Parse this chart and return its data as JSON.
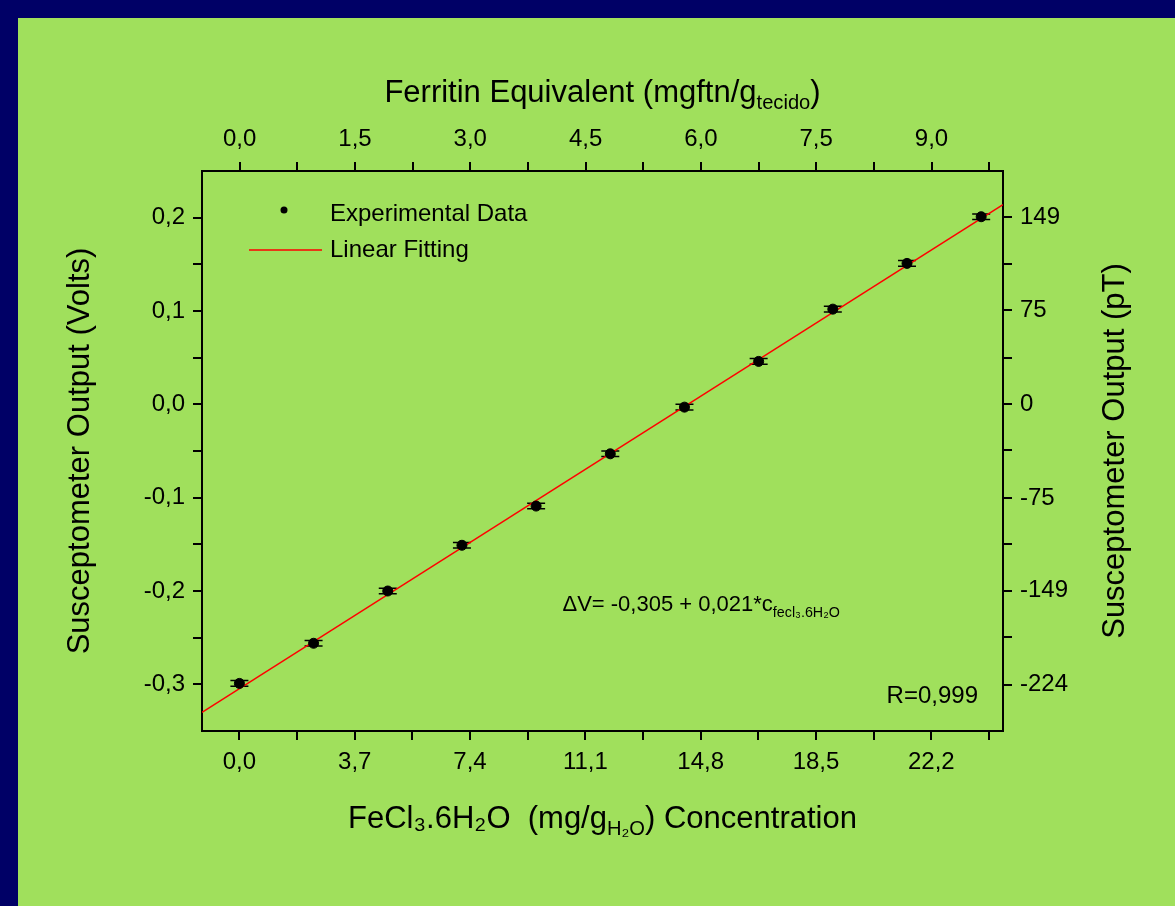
{
  "chart_data": {
    "type": "scatter",
    "xlabel": "FeCl₃.6H₂O  (mg/g$_{H₂O}$) Concentration",
    "ylabel": "Susceptometer Output (Volts)",
    "y2label": "Susceptometer Output (pT)",
    "x2label": "Ferritin Equivalent (mgftn/g$_{tecido}$)",
    "annotations": [
      "ΔV= -0,305 + 0,021*c$_{fecl₃.6H₂O}$",
      "R=0,999"
    ],
    "xlim": [
      -1.2,
      24.5
    ],
    "xticks": [
      {
        "value": 0,
        "label": "0,0"
      },
      {
        "value": 1.85,
        "label": null
      },
      {
        "value": 3.7,
        "label": "3,7"
      },
      {
        "value": 5.55,
        "label": null
      },
      {
        "value": 7.4,
        "label": "7,4"
      },
      {
        "value": 9.25,
        "label": null
      },
      {
        "value": 11.1,
        "label": "11,1"
      },
      {
        "value": 12.95,
        "label": null
      },
      {
        "value": 14.8,
        "label": "14,8"
      },
      {
        "value": 16.65,
        "label": null
      },
      {
        "value": 18.5,
        "label": "18,5"
      },
      {
        "value": 20.35,
        "label": null
      },
      {
        "value": 22.2,
        "label": "22,2"
      },
      {
        "value": 24.05,
        "label": null
      }
    ],
    "x2lim": [
      -0.49,
      9.93
    ],
    "x2ticks": [
      {
        "value": 0,
        "label": "0,0"
      },
      {
        "value": 0.75,
        "label": null
      },
      {
        "value": 1.5,
        "label": "1,5"
      },
      {
        "value": 2.25,
        "label": null
      },
      {
        "value": 3,
        "label": "3,0"
      },
      {
        "value": 3.75,
        "label": null
      },
      {
        "value": 4.5,
        "label": "4,5"
      },
      {
        "value": 5.25,
        "label": null
      },
      {
        "value": 6,
        "label": "6,0"
      },
      {
        "value": 6.75,
        "label": null
      },
      {
        "value": 7.5,
        "label": "7,5"
      },
      {
        "value": 8.25,
        "label": null
      },
      {
        "value": 9,
        "label": "9,0"
      },
      {
        "value": 9.75,
        "label": null
      }
    ],
    "ylim": [
      -0.35,
      0.25
    ],
    "yticks": [
      {
        "value": -0.3,
        "label": "-0,3"
      },
      {
        "value": -0.25,
        "label": null
      },
      {
        "value": -0.2,
        "label": "-0,2"
      },
      {
        "value": -0.15,
        "label": null
      },
      {
        "value": -0.1,
        "label": "-0,1"
      },
      {
        "value": -0.05,
        "label": null
      },
      {
        "value": 0,
        "label": "0,0"
      },
      {
        "value": 0.05,
        "label": null
      },
      {
        "value": 0.1,
        "label": "0,1"
      },
      {
        "value": 0.15,
        "label": null
      },
      {
        "value": 0.2,
        "label": "0,2"
      }
    ],
    "y2lim": [
      -261,
      186
    ],
    "y2ticks": [
      -224,
      {
        "value": -186,
        "label": null
      },
      -149,
      {
        "value": -112,
        "label": null
      },
      -75,
      {
        "value": -37,
        "label": null
      },
      0,
      {
        "value": 37,
        "label": null
      },
      75,
      {
        "value": 112,
        "label": null
      },
      149
    ],
    "grid": false,
    "legend": "top left",
    "series": [
      {
        "name": "Experimental Data",
        "type": "scatter",
        "color": "#000000",
        "marker": "circle",
        "x": [
          0,
          2.38,
          4.76,
          7.14,
          9.52,
          11.9,
          14.28,
          16.66,
          19.04,
          21.42,
          23.8
        ],
        "values": [
          -0.299,
          -0.256,
          -0.2,
          -0.151,
          -0.109,
          -0.053,
          -0.003,
          0.046,
          0.102,
          0.151,
          0.201
        ],
        "errors": [
          0.003,
          0.003,
          0.003,
          0.003,
          0.003,
          0.003,
          0.003,
          0.003,
          0.003,
          0.003,
          0.003
        ]
      },
      {
        "name": "Linear Fitting",
        "type": "line",
        "color": "#ff0000",
        "marker": "none",
        "x": [
          -1.2,
          24.5
        ],
        "values": [
          -0.33,
          0.214
        ]
      }
    ]
  }
}
